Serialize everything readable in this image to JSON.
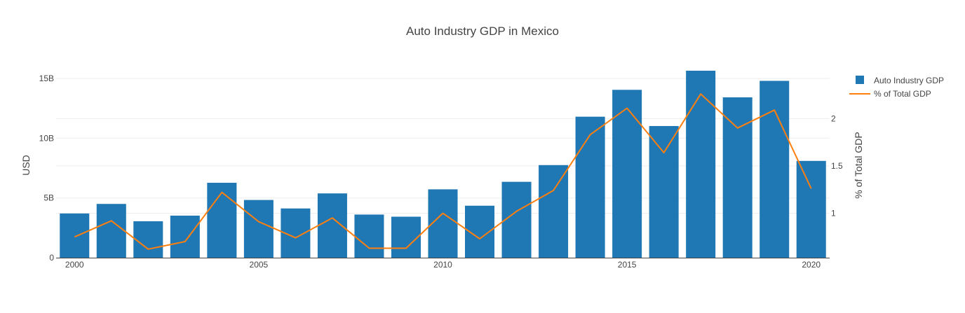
{
  "chart_data": {
    "type": "bar",
    "title": "Auto Industry GDP in Mexico",
    "ylabel": "USD",
    "y2label": "% of Total GDP",
    "x": [
      2000,
      2001,
      2002,
      2003,
      2004,
      2005,
      2006,
      2007,
      2008,
      2009,
      2010,
      2011,
      2012,
      2013,
      2014,
      2015,
      2016,
      2017,
      2018,
      2019,
      2020
    ],
    "x_ticks": [
      "2000",
      "2005",
      "2010",
      "2015",
      "2020"
    ],
    "y_ticks": [
      "0",
      "5B",
      "10B",
      "15B"
    ],
    "y2_ticks": [
      "1",
      "1.5",
      "2"
    ],
    "ylim": [
      0,
      16000000000
    ],
    "y2lim": [
      0.53,
      2.55
    ],
    "grid": true,
    "legend_position": "top-right",
    "series": [
      {
        "name": "Auto Industry GDP",
        "type": "bar",
        "axis": "left",
        "color": "#1f77b4",
        "values": [
          3700000000,
          4500000000,
          3050000000,
          3520000000,
          6270000000,
          4830000000,
          4120000000,
          5380000000,
          3610000000,
          3430000000,
          5720000000,
          4350000000,
          6350000000,
          7750000000,
          11800000000,
          14050000000,
          11020000000,
          15650000000,
          13420000000,
          14800000000,
          8100000000
        ]
      },
      {
        "name": "% of Total GDP",
        "type": "line",
        "axis": "right",
        "color": "#ff7f0e",
        "values": [
          0.75,
          0.92,
          0.62,
          0.7,
          1.22,
          0.91,
          0.74,
          0.95,
          0.63,
          0.63,
          1.0,
          0.73,
          1.02,
          1.24,
          1.83,
          2.11,
          1.64,
          2.26,
          1.9,
          2.09,
          1.26
        ]
      }
    ]
  }
}
